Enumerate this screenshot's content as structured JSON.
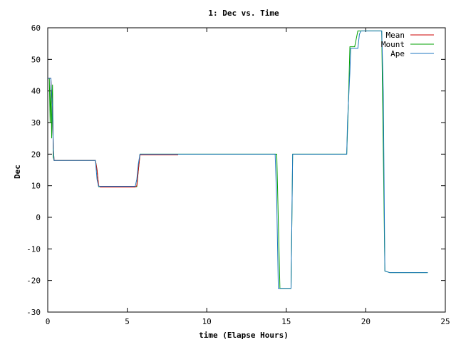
{
  "chart_data": {
    "type": "line",
    "title": "1: Dec vs. Time",
    "xlabel": "time (Elapse Hours)",
    "ylabel": "Dec",
    "xlim": [
      0,
      25
    ],
    "ylim": [
      -30,
      60
    ],
    "xticks": [
      0,
      5,
      10,
      15,
      20,
      25
    ],
    "yticks": [
      -30,
      -20,
      -10,
      0,
      10,
      20,
      30,
      40,
      50,
      60
    ],
    "grid": false,
    "legend_position": "top-right",
    "series": [
      {
        "name": "Mean",
        "color": "#cc0000",
        "points": [
          [
            0,
            44
          ],
          [
            0.2,
            44
          ],
          [
            0.22,
            41
          ],
          [
            0.3,
            35
          ],
          [
            0.35,
            22
          ],
          [
            0.4,
            18
          ],
          [
            3,
            18
          ],
          [
            3.1,
            15
          ],
          [
            3.2,
            10
          ],
          [
            3.3,
            9.6
          ],
          [
            5.5,
            9.6
          ],
          [
            5.6,
            10
          ],
          [
            5.7,
            15
          ],
          [
            5.8,
            19.8
          ],
          [
            8.2,
            19.8
          ]
        ]
      },
      {
        "name": "Mount",
        "color": "#00a000",
        "points": [
          [
            0,
            44
          ],
          [
            0.1,
            44
          ],
          [
            0.15,
            30
          ],
          [
            0.2,
            42
          ],
          [
            0.25,
            25
          ],
          [
            0.3,
            42
          ],
          [
            0.35,
            19
          ],
          [
            0.4,
            18
          ],
          [
            3,
            18
          ],
          [
            3.1,
            15
          ],
          [
            3.2,
            9.7
          ],
          [
            5.6,
            9.7
          ],
          [
            5.7,
            15
          ],
          [
            5.8,
            20
          ],
          [
            14.4,
            20
          ],
          [
            14.6,
            -22.5
          ],
          [
            15.3,
            -22.5
          ],
          [
            15.4,
            20
          ],
          [
            18.8,
            20
          ],
          [
            18.9,
            35
          ],
          [
            19,
            54
          ],
          [
            19.3,
            54
          ],
          [
            19.5,
            59
          ],
          [
            21,
            59
          ],
          [
            21.2,
            -17
          ],
          [
            21.5,
            -17.5
          ],
          [
            23.9,
            -17.5
          ]
        ]
      },
      {
        "name": "Ape",
        "color": "#1f77c0",
        "points": [
          [
            0,
            44
          ],
          [
            0.2,
            44
          ],
          [
            0.22,
            41
          ],
          [
            0.3,
            35
          ],
          [
            0.35,
            22
          ],
          [
            0.4,
            18
          ],
          [
            3,
            18
          ],
          [
            3.05,
            15
          ],
          [
            3.1,
            12
          ],
          [
            3.2,
            9.8
          ],
          [
            5.5,
            9.8
          ],
          [
            5.6,
            12
          ],
          [
            5.7,
            17
          ],
          [
            5.8,
            20
          ],
          [
            14.3,
            20
          ],
          [
            14.4,
            5
          ],
          [
            14.5,
            -22.5
          ],
          [
            15.3,
            -22.5
          ],
          [
            15.4,
            20
          ],
          [
            18.8,
            20
          ],
          [
            18.85,
            30
          ],
          [
            19,
            46
          ],
          [
            19.05,
            53.5
          ],
          [
            19.5,
            53.5
          ],
          [
            19.6,
            58
          ],
          [
            19.7,
            59
          ],
          [
            21,
            59
          ],
          [
            21.1,
            40
          ],
          [
            21.2,
            -17
          ],
          [
            21.5,
            -17.5
          ],
          [
            23.9,
            -17.5
          ]
        ]
      }
    ]
  }
}
